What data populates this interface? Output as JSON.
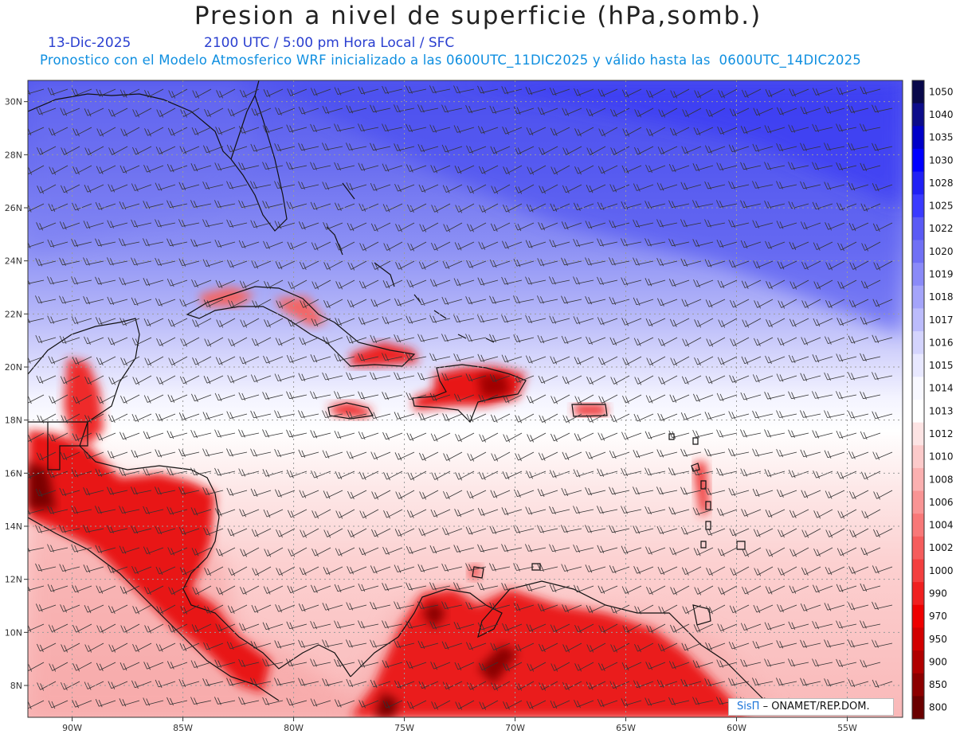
{
  "header": {
    "title": "Presion a nivel de superficie (hPa,somb.)",
    "date": "13-Dic-2025",
    "time": "2100 UTC / 5:00 pm Hora Local / SFC",
    "forecast": "Pronostico con el Modelo Atmosferico WRF inicializado a las 0600UTC_11DIC2025 y válido hasta las  0600UTC_14DIC2025"
  },
  "map": {
    "lon_range": [
      -92,
      -52.5
    ],
    "lat_range": [
      6.8,
      30.8
    ],
    "lon_ticks": [
      {
        "value": -90,
        "label": "90W"
      },
      {
        "value": -85,
        "label": "85W"
      },
      {
        "value": -80,
        "label": "80W"
      },
      {
        "value": -75,
        "label": "75W"
      },
      {
        "value": -70,
        "label": "70W"
      },
      {
        "value": -65,
        "label": "65W"
      },
      {
        "value": -60,
        "label": "60W"
      },
      {
        "value": -55,
        "label": "55W"
      }
    ],
    "lat_ticks": [
      {
        "value": 30,
        "label": "30N"
      },
      {
        "value": 28,
        "label": "28N"
      },
      {
        "value": 26,
        "label": "26N"
      },
      {
        "value": 24,
        "label": "24N"
      },
      {
        "value": 22,
        "label": "22N"
      },
      {
        "value": 20,
        "label": "20N"
      },
      {
        "value": 18,
        "label": "18N"
      },
      {
        "value": 16,
        "label": "16N"
      },
      {
        "value": 14,
        "label": "14N"
      },
      {
        "value": 12,
        "label": "12N"
      },
      {
        "value": 10,
        "label": "10N"
      },
      {
        "value": 8,
        "label": "8N"
      }
    ],
    "grid": true,
    "wind_barbs": true
  },
  "colorbar": {
    "levels": [
      "1050",
      "1040",
      "1035",
      "1030",
      "1028",
      "1025",
      "1022",
      "1020",
      "1019",
      "1018",
      "1017",
      "1016",
      "1015",
      "1014",
      "1013",
      "1012",
      "1010",
      "1008",
      "1006",
      "1004",
      "1002",
      "1000",
      "990",
      "970",
      "950",
      "900",
      "850",
      "800"
    ],
    "colors": [
      "#08084a",
      "#0c0c8a",
      "#0000c8",
      "#0000ff",
      "#2020f5",
      "#3a3aff",
      "#5a5af5",
      "#7070f5",
      "#8a8af8",
      "#a4a4fa",
      "#bcbcfc",
      "#d4d4fd",
      "#e8e8ff",
      "#f8f8ff",
      "#ffffff",
      "#fde4e4",
      "#fccaca",
      "#fbb0b0",
      "#f99494",
      "#f87878",
      "#f55c5c",
      "#f33f3f",
      "#f02020",
      "#ee0000",
      "#d20000",
      "#b00000",
      "#8c0000",
      "#6a0000"
    ]
  },
  "credit": {
    "brand": "SisΠ",
    "org": "– ONAMET/REP.DOM."
  }
}
